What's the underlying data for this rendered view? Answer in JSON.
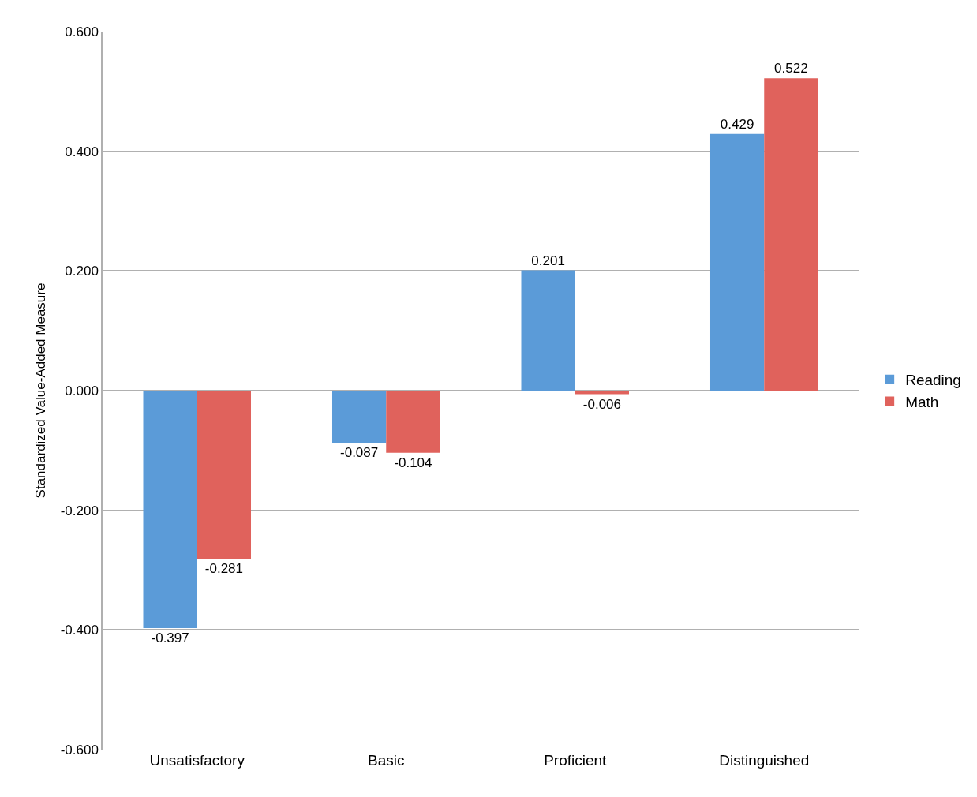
{
  "chart_data": {
    "type": "bar",
    "ylabel": "Standardized Value-Added Measure",
    "categories": [
      "Unsatisfactory",
      "Basic",
      "Proficient",
      "Distinguished"
    ],
    "series": [
      {
        "name": "Reading",
        "color": "#5b9bd8",
        "values": [
          -0.397,
          -0.087,
          0.201,
          0.429
        ]
      },
      {
        "name": "Math",
        "color": "#e0625c",
        "values": [
          -0.281,
          -0.104,
          -0.006,
          0.522
        ]
      }
    ],
    "ylim": [
      -0.6,
      0.6
    ],
    "yticks": [
      {
        "value": -0.6,
        "label": "-0.600"
      },
      {
        "value": -0.4,
        "label": "-0.400"
      },
      {
        "value": -0.2,
        "label": "-0.200"
      },
      {
        "value": 0,
        "label": "0.000"
      },
      {
        "value": 0.2,
        "label": "0.200"
      },
      {
        "value": 0.4,
        "label": "0.400"
      },
      {
        "value": 0.6,
        "label": "0.600"
      }
    ],
    "grid": "y",
    "legend": "right",
    "data_labels": true
  }
}
